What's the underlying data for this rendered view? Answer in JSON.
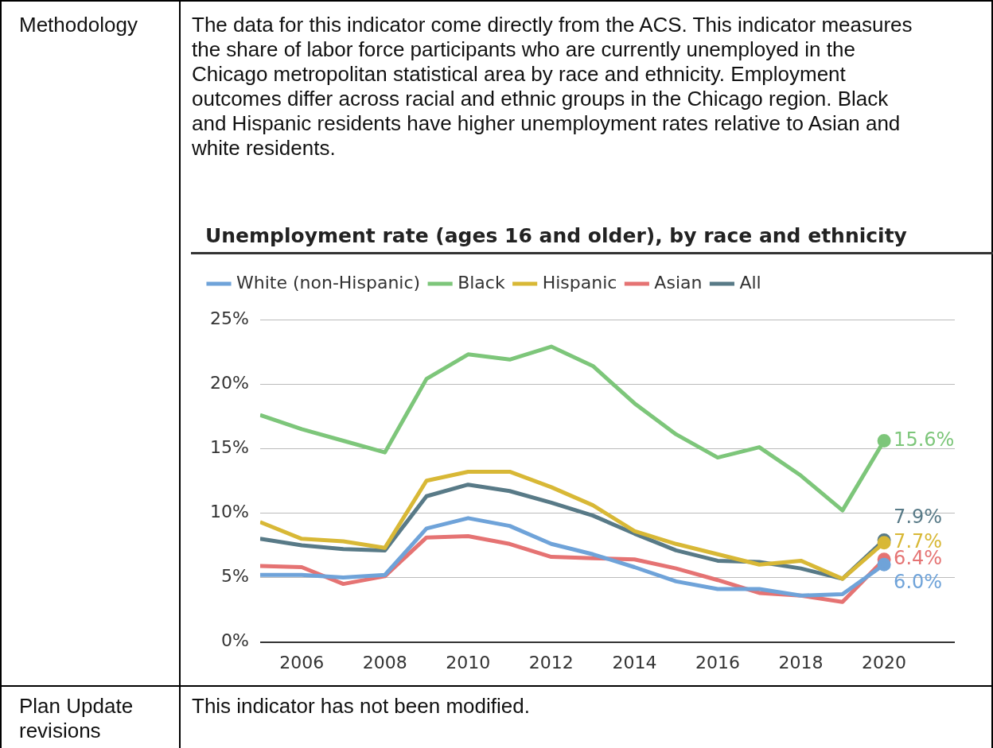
{
  "chart_data": {
    "type": "line",
    "title": "Unemployment rate (ages 16 and older), by race and ethnicity",
    "annotations": [
      "Methodology",
      "The data for this indicator come directly from the ACS. This indicator measures the share of labor force participants who are currently unemployed in the Chicago metropolitan statistical area by race and ethnicity. Employment outcomes differ across racial and ethnic groups in the Chicago region. Black and Hispanic residents have higher unemployment rates relative to Asian and white residents.",
      "Plan Update revisions",
      "This indicator has not been modified."
    ],
    "x": [
      2005,
      2006,
      2007,
      2008,
      2009,
      2010,
      2011,
      2012,
      2013,
      2014,
      2015,
      2016,
      2017,
      2018,
      2019,
      2020
    ],
    "xlim": [
      2005,
      2021.7
    ],
    "xticks": [
      2006,
      2008,
      2010,
      2012,
      2014,
      2016,
      2018,
      2020
    ],
    "ylim": [
      0,
      25
    ],
    "yticks": [
      {
        "value": 0,
        "label": "0%"
      },
      {
        "value": 5,
        "label": "5%"
      },
      {
        "value": 10,
        "label": "10%"
      },
      {
        "value": 15,
        "label": "15%"
      },
      {
        "value": 20,
        "label": "20%"
      },
      {
        "value": 25,
        "label": "25%"
      }
    ],
    "grid": "y",
    "legend": "top left",
    "line_style": "solid",
    "series": [
      {
        "name": "White (non-Hispanic)",
        "color": "#6fa3d9",
        "values": [
          5.2,
          5.2,
          5.0,
          5.2,
          8.8,
          9.6,
          9.0,
          7.6,
          6.8,
          5.8,
          4.7,
          4.1,
          4.1,
          3.6,
          3.7,
          6.0
        ],
        "value_labels": [
          null,
          null,
          null,
          null,
          null,
          null,
          null,
          null,
          null,
          null,
          null,
          null,
          null,
          null,
          null,
          "6.0%"
        ]
      },
      {
        "name": "Black",
        "color": "#7dc67a",
        "values": [
          17.6,
          16.5,
          15.6,
          14.7,
          20.4,
          22.3,
          21.9,
          22.9,
          21.4,
          18.5,
          16.1,
          14.3,
          15.1,
          12.9,
          10.2,
          15.6
        ],
        "value_labels": [
          null,
          null,
          null,
          null,
          null,
          null,
          null,
          null,
          null,
          null,
          null,
          null,
          null,
          null,
          null,
          "15.6%"
        ]
      },
      {
        "name": "Hispanic",
        "color": "#d8b836",
        "values": [
          9.3,
          8.0,
          7.8,
          7.3,
          12.5,
          13.2,
          13.2,
          12.0,
          10.6,
          8.6,
          7.6,
          6.8,
          6.0,
          6.3,
          4.9,
          7.7
        ],
        "value_labels": [
          null,
          null,
          null,
          null,
          null,
          null,
          null,
          null,
          null,
          null,
          null,
          null,
          null,
          null,
          null,
          "7.7%"
        ]
      },
      {
        "name": "Asian",
        "color": "#e57373",
        "values": [
          5.9,
          5.8,
          4.5,
          5.1,
          8.1,
          8.2,
          7.6,
          6.6,
          6.5,
          6.4,
          5.7,
          4.8,
          3.8,
          3.6,
          3.1,
          6.4
        ],
        "value_labels": [
          null,
          null,
          null,
          null,
          null,
          null,
          null,
          null,
          null,
          null,
          null,
          null,
          null,
          null,
          null,
          "6.4%"
        ]
      },
      {
        "name": "All",
        "color": "#587a87",
        "values": [
          8.0,
          7.5,
          7.2,
          7.1,
          11.3,
          12.2,
          11.7,
          10.8,
          9.8,
          8.4,
          7.1,
          6.3,
          6.2,
          5.7,
          4.9,
          7.9
        ],
        "value_labels": [
          null,
          null,
          null,
          null,
          null,
          null,
          null,
          null,
          null,
          null,
          null,
          null,
          null,
          null,
          null,
          "7.9%"
        ]
      }
    ]
  }
}
